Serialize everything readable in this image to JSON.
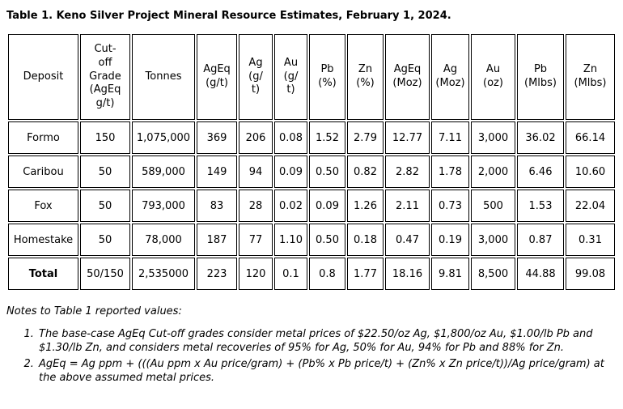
{
  "page": {
    "title": "Table 1. Keno Silver Project Mineral Resource Estimates, February 1, 2024."
  },
  "table": {
    "columns": [
      {
        "label": "Deposit"
      },
      {
        "label": "Cut-\noff\nGrade\n(AgEq\ng/t)"
      },
      {
        "label": "Tonnes"
      },
      {
        "label": "AgEq\n(g/t)"
      },
      {
        "label": "Ag\n(g/\nt)"
      },
      {
        "label": "Au\n(g/\nt)"
      },
      {
        "label": "Pb\n(%)"
      },
      {
        "label": "Zn\n(%)"
      },
      {
        "label": "AgEq\n(Moz)"
      },
      {
        "label": "Ag\n(Moz)"
      },
      {
        "label": "Au\n(oz)"
      },
      {
        "label": "Pb\n(Mlbs)"
      },
      {
        "label": "Zn\n(Mlbs)"
      }
    ],
    "rows": [
      {
        "deposit": "Formo",
        "bold": false,
        "values": [
          "150",
          "1,075,000",
          "369",
          "206",
          "0.08",
          "1.52",
          "2.79",
          "12.77",
          "7.11",
          "3,000",
          "36.02",
          "66.14"
        ]
      },
      {
        "deposit": "Caribou",
        "bold": false,
        "values": [
          "50",
          "589,000",
          "149",
          "94",
          "0.09",
          "0.50",
          "0.82",
          "2.82",
          "1.78",
          "2,000",
          "6.46",
          "10.60"
        ]
      },
      {
        "deposit": "Fox",
        "bold": false,
        "values": [
          "50",
          "793,000",
          "83",
          "28",
          "0.02",
          "0.09",
          "1.26",
          "2.11",
          "0.73",
          "500",
          "1.53",
          "22.04"
        ]
      },
      {
        "deposit": "Homestake",
        "bold": false,
        "values": [
          "50",
          "78,000",
          "187",
          "77",
          "1.10",
          "0.50",
          "0.18",
          "0.47",
          "0.19",
          "3,000",
          "0.87",
          "0.31"
        ]
      },
      {
        "deposit": "Total",
        "bold": true,
        "values": [
          "50/150",
          "2,535000",
          "223",
          "120",
          "0.1",
          "0.8",
          "1.77",
          "18.16",
          "9.81",
          "8,500",
          "44.88",
          "99.08"
        ]
      }
    ]
  },
  "notes": {
    "heading": "Notes to Table 1 reported values:",
    "items": [
      "The base-case AgEq Cut-off grades consider metal prices of $22.50/oz Ag, $1,800/oz Au, $1.00/lb Pb and $1.30/lb Zn, and considers metal recoveries of 95% for Ag, 50% for Au, 94% for Pb and 88% for Zn.",
      "AgEq = Ag ppm + (((Au ppm x Au price/gram) + (Pb% x Pb price/t) + (Zn% x Zn price/t))/Ag price/gram) at the above assumed metal prices."
    ]
  }
}
